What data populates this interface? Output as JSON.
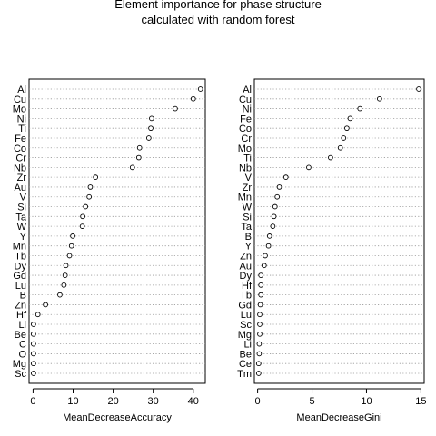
{
  "title_line1": "Element importance for phase structure",
  "title_line2": "calculated with random forest",
  "chart_data": [
    {
      "type": "dotchart",
      "xlabel": "MeanDecreaseAccuracy",
      "xlim": [
        -1,
        43
      ],
      "xticks": [
        0,
        10,
        20,
        30,
        40
      ],
      "grid": "dotted horizontal",
      "categories": [
        "Al",
        "Cu",
        "Mo",
        "Ni",
        "Ti",
        "Fe",
        "Co",
        "Cr",
        "Nb",
        "Zr",
        "Au",
        "V",
        "Si",
        "Ta",
        "W",
        "Y",
        "Mn",
        "Tb",
        "Dy",
        "Gd",
        "Lu",
        "B",
        "Zn",
        "Hf",
        "Li",
        "Be",
        "C",
        "O",
        "Mg",
        "Sc"
      ],
      "values": [
        41.8,
        40.0,
        35.5,
        29.6,
        29.4,
        28.9,
        26.6,
        26.4,
        24.8,
        15.6,
        14.3,
        14.0,
        13.1,
        12.4,
        12.3,
        9.9,
        9.6,
        9.1,
        8.2,
        8.0,
        7.7,
        6.7,
        3.1,
        1.2,
        0.1,
        0.1,
        0.1,
        0.1,
        0.1,
        0.1
      ]
    },
    {
      "type": "dotchart",
      "xlabel": "MeanDecreaseGini",
      "xlim": [
        -0.3,
        15.3
      ],
      "xticks": [
        0,
        5,
        10,
        15
      ],
      "grid": "dotted horizontal",
      "categories": [
        "Al",
        "Cu",
        "Ni",
        "Fe",
        "Co",
        "Cr",
        "Mo",
        "Ti",
        "Nb",
        "V",
        "Zr",
        "Mn",
        "W",
        "Si",
        "Ta",
        "B",
        "Y",
        "Zn",
        "Au",
        "Dy",
        "Hf",
        "Tb",
        "Gd",
        "Lu",
        "Sc",
        "Mg",
        "Li",
        "Be",
        "Ce",
        "Tm"
      ],
      "values": [
        14.8,
        11.2,
        9.4,
        8.5,
        8.2,
        7.9,
        7.6,
        6.7,
        4.7,
        2.6,
        2.0,
        1.8,
        1.6,
        1.5,
        1.4,
        1.1,
        1.0,
        0.7,
        0.6,
        0.3,
        0.3,
        0.3,
        0.25,
        0.2,
        0.2,
        0.2,
        0.15,
        0.15,
        0.1,
        0.1
      ]
    }
  ]
}
